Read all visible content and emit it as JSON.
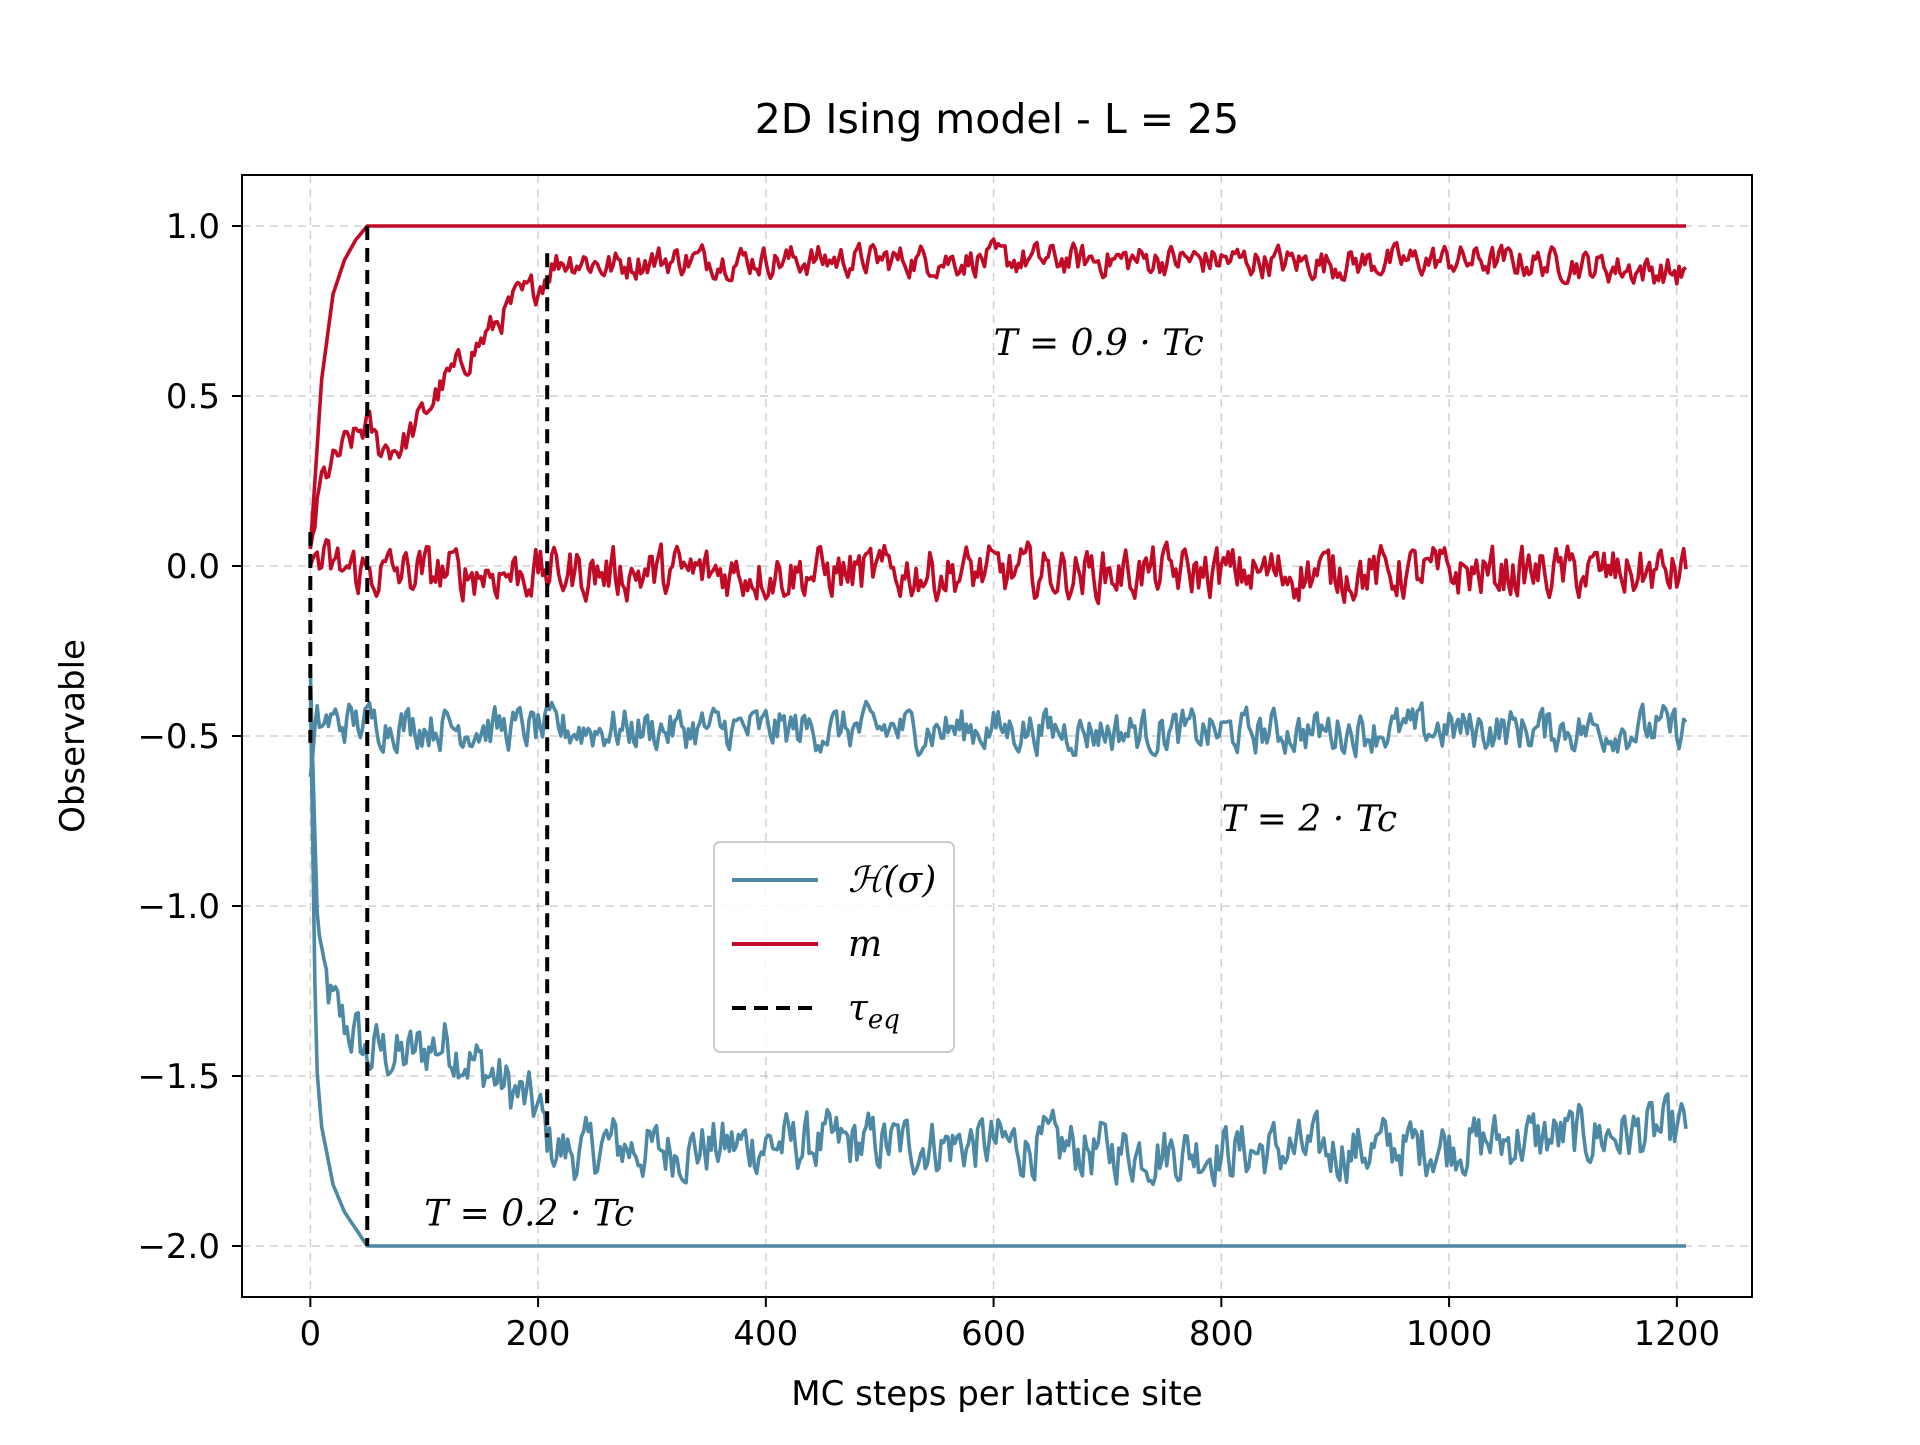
{
  "chart_data": {
    "type": "line",
    "title": "2D Ising model - L = 25",
    "xlabel": "MC steps per lattice site",
    "ylabel": "Observable",
    "xlim": [
      -60,
      1266
    ],
    "ylim": [
      -2.15,
      1.15
    ],
    "xticks": [
      0,
      200,
      400,
      600,
      800,
      1000,
      1200
    ],
    "xtick_labels": [
      "0",
      "200",
      "400",
      "600",
      "800",
      "1000",
      "1200"
    ],
    "yticks": [
      1.0,
      0.5,
      0.0,
      -0.5,
      -1.0,
      -1.5,
      -2.0
    ],
    "ytick_labels": [
      "1.0",
      "0.5",
      "0.0",
      "−0.5",
      "−1.0",
      "−1.5",
      "−2.0"
    ],
    "grid": true,
    "legend_placement": "center",
    "legend": [
      {
        "label": "ℋ(σ)",
        "color": "#4d88a5",
        "style": "solid"
      },
      {
        "label": "m",
        "color": "#c10a25",
        "style": "solid"
      },
      {
        "label": "τeq",
        "color": "#000000",
        "style": "dashed"
      }
    ],
    "colors": {
      "energy": "#4d88a5",
      "magnetization": "#c10a25",
      "tau": "#000000"
    },
    "annotations": [
      {
        "text": "T = 0.9 · Tc",
        "x": 600,
        "y": 0.62
      },
      {
        "text": "T = 2 · Tc",
        "x": 800,
        "y": -0.78
      },
      {
        "text": "T = 0.2 · Tc",
        "x": 100,
        "y": -1.94
      }
    ],
    "series": [
      {
        "kind": "energy",
        "temperature": "T = 0.2 · Tc",
        "x": [
          0,
          5,
          10,
          20,
          30,
          40,
          50,
          60,
          100,
          200,
          400,
          600,
          800,
          1000,
          1208
        ],
        "y": [
          -0.35,
          -1.45,
          -1.65,
          -1.82,
          -1.9,
          -1.95,
          -2.0,
          -2.0,
          -2.0,
          -2.0,
          -2.0,
          -2.0,
          -2.0,
          -2.0,
          -2.0
        ]
      },
      {
        "kind": "magnetization",
        "temperature": "T = 0.2 · Tc",
        "x": [
          0,
          5,
          10,
          20,
          30,
          40,
          50,
          60,
          100,
          200,
          400,
          600,
          800,
          1000,
          1208
        ],
        "y": [
          0.05,
          0.3,
          0.55,
          0.8,
          0.9,
          0.96,
          1.0,
          1.0,
          1.0,
          1.0,
          1.0,
          1.0,
          1.0,
          1.0,
          1.0
        ]
      },
      {
        "kind": "energy",
        "temperature": "T = 0.9 · Tc",
        "x": [
          0,
          5,
          10,
          20,
          30,
          40,
          50,
          60,
          80,
          100,
          120,
          140,
          160,
          180,
          200,
          210,
          220,
          240,
          260,
          300,
          400,
          500,
          600,
          700,
          800,
          900,
          1000,
          1100,
          1208
        ],
        "y": [
          -0.3,
          -0.95,
          -1.2,
          -1.3,
          -1.35,
          -1.38,
          -1.45,
          -1.42,
          -1.45,
          -1.42,
          -1.4,
          -1.45,
          -1.5,
          -1.55,
          -1.6,
          -1.7,
          -1.72,
          -1.73,
          -1.7,
          -1.72,
          -1.7,
          -1.7,
          -1.7,
          -1.72,
          -1.72,
          -1.72,
          -1.7,
          -1.68,
          -1.66
        ],
        "noise_amplitude": 0.075
      },
      {
        "kind": "magnetization",
        "temperature": "T = 0.9 · Tc",
        "x": [
          0,
          5,
          10,
          20,
          30,
          40,
          50,
          60,
          80,
          100,
          120,
          140,
          160,
          180,
          200,
          210,
          220,
          240,
          260,
          300,
          400,
          500,
          600,
          700,
          800,
          900,
          1000,
          1100,
          1208
        ],
        "y": [
          0.05,
          0.15,
          0.25,
          0.3,
          0.35,
          0.38,
          0.42,
          0.35,
          0.35,
          0.45,
          0.55,
          0.62,
          0.7,
          0.78,
          0.82,
          0.88,
          0.9,
          0.9,
          0.88,
          0.9,
          0.9,
          0.9,
          0.9,
          0.9,
          0.9,
          0.89,
          0.9,
          0.89,
          0.86
        ],
        "noise_amplitude": 0.04
      },
      {
        "kind": "energy",
        "temperature": "T = 2 · Tc",
        "x": [
          0,
          5,
          10,
          20,
          50,
          100,
          200,
          400,
          600,
          800,
          1000,
          1208
        ],
        "y": [
          -0.62,
          -0.48,
          -0.46,
          -0.46,
          -0.46,
          -0.47,
          -0.48,
          -0.48,
          -0.48,
          -0.49,
          -0.48,
          -0.48
        ],
        "noise_amplitude": 0.055
      },
      {
        "kind": "magnetization",
        "temperature": "T = 2 · Tc",
        "x": [
          0,
          5,
          10,
          50,
          100,
          200,
          400,
          600,
          800,
          1000,
          1208
        ],
        "y": [
          0.0,
          0.05,
          0.0,
          -0.02,
          -0.02,
          -0.02,
          -0.02,
          -0.02,
          -0.02,
          -0.02,
          -0.02
        ],
        "noise_amplitude": 0.065
      }
    ],
    "tau_eq": [
      {
        "temperature": "T = 2 · Tc",
        "x": 0,
        "y_range": [
          -0.52,
          0.1
        ]
      },
      {
        "temperature": "T = 0.2 · Tc",
        "x": 50,
        "y_range": [
          -2.0,
          1.0
        ]
      },
      {
        "temperature": "T = 0.9 · Tc",
        "x": 208,
        "y_range": [
          -1.68,
          0.92
        ]
      }
    ]
  }
}
